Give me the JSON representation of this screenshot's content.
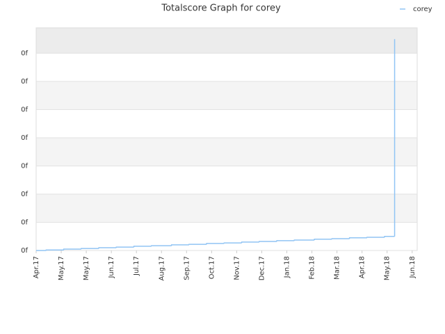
{
  "chart_data": {
    "type": "step",
    "title": "Totalscore Graph for corey",
    "series": [
      {
        "name": "corey",
        "color": "#90c4f4",
        "x": [
          0,
          0.4,
          1.1,
          1.8,
          2.5,
          3.2,
          3.9,
          4.6,
          5.4,
          6.1,
          6.8,
          7.5,
          8.2,
          8.9,
          9.6,
          10.3,
          11.1,
          11.8,
          12.5,
          13.2,
          13.9,
          14.3
        ],
        "values": [
          0,
          0.02,
          0.05,
          0.07,
          0.1,
          0.12,
          0.15,
          0.17,
          0.2,
          0.22,
          0.25,
          0.27,
          0.3,
          0.32,
          0.35,
          0.37,
          0.4,
          0.42,
          0.45,
          0.47,
          0.5,
          7.5
        ]
      }
    ],
    "xlim": [
      0,
      15.2
    ],
    "xticks": [
      {
        "value": 0,
        "label": "Apr.17"
      },
      {
        "value": 1,
        "label": "May.17"
      },
      {
        "value": 2,
        "label": "May.17"
      },
      {
        "value": 3,
        "label": "Jun.17"
      },
      {
        "value": 4,
        "label": "Jul.17"
      },
      {
        "value": 5,
        "label": "Aug.17"
      },
      {
        "value": 6,
        "label": "Sep.17"
      },
      {
        "value": 7,
        "label": "Oct.17"
      },
      {
        "value": 8,
        "label": "Nov.17"
      },
      {
        "value": 9,
        "label": "Dec.17"
      },
      {
        "value": 10,
        "label": "Jan.18"
      },
      {
        "value": 11,
        "label": "Feb.18"
      },
      {
        "value": 12,
        "label": "Mar.18"
      },
      {
        "value": 13,
        "label": "Apr.18"
      },
      {
        "value": 14,
        "label": "May.18"
      },
      {
        "value": 15,
        "label": "Jun.18"
      }
    ],
    "ylim": [
      0,
      7.9
    ],
    "yticks": [
      {
        "value": 0,
        "label": "0f"
      },
      {
        "value": 1,
        "label": "0f"
      },
      {
        "value": 2,
        "label": "0f"
      },
      {
        "value": 3,
        "label": "0f"
      },
      {
        "value": 4,
        "label": "0f"
      },
      {
        "value": 5,
        "label": "0f"
      },
      {
        "value": 6,
        "label": "0f"
      },
      {
        "value": 7,
        "label": "0f"
      }
    ],
    "grid": true,
    "legend": "top-right"
  }
}
